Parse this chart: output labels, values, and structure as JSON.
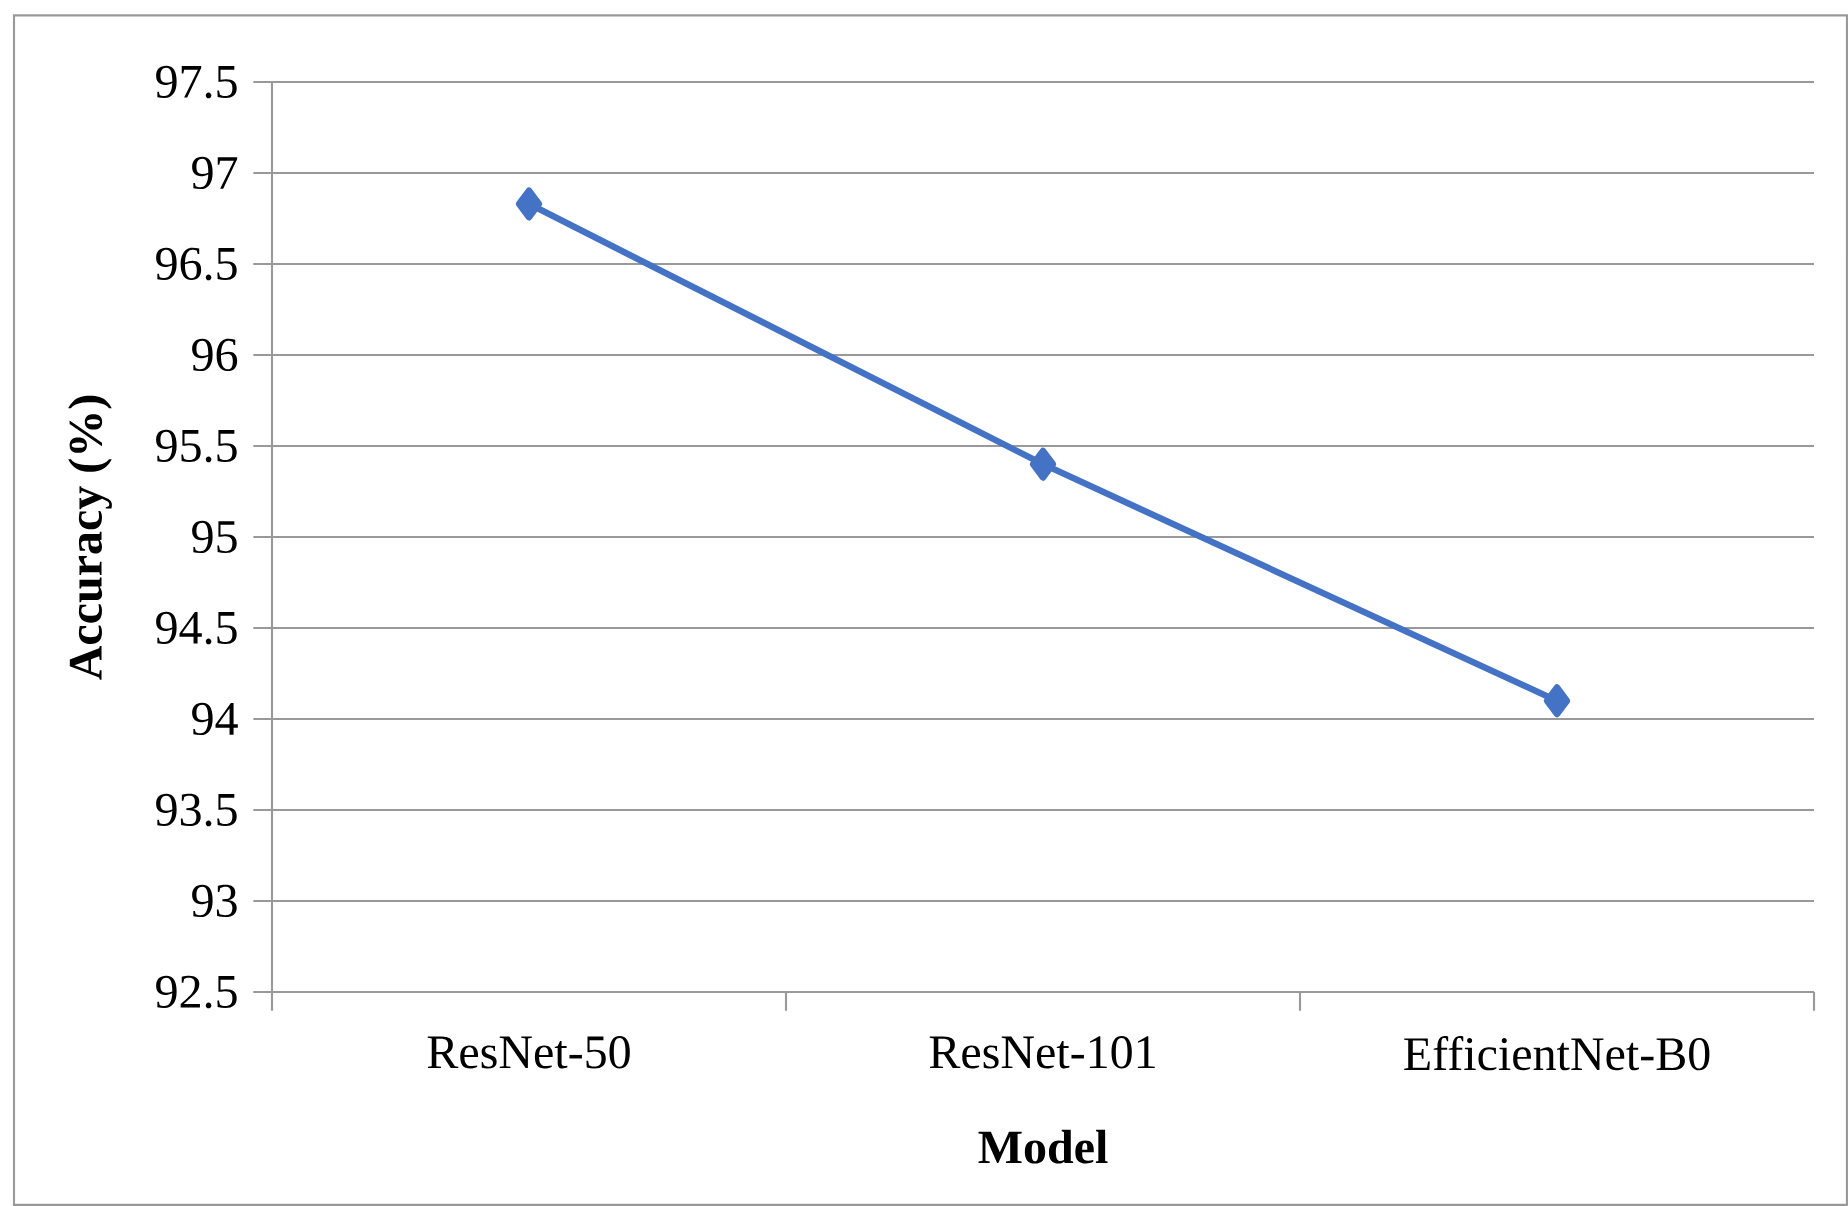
{
  "chart_data": {
    "type": "line",
    "categories": [
      "ResNet-50",
      "ResNet-101",
      "EfficientNet-B0"
    ],
    "series": [
      {
        "color": "#4472c4",
        "values": [
          96.83,
          95.4,
          94.1
        ]
      }
    ],
    "xlabel": "Model",
    "ylabel": "Accuracy (%)",
    "ylim": [
      92.5,
      97.5
    ],
    "yticks": [
      92.5,
      93,
      93.5,
      94,
      94.5,
      95,
      95.5,
      96,
      96.5,
      97,
      97.5
    ],
    "grid": "y",
    "marker": "diamond",
    "line_style": "solid"
  }
}
